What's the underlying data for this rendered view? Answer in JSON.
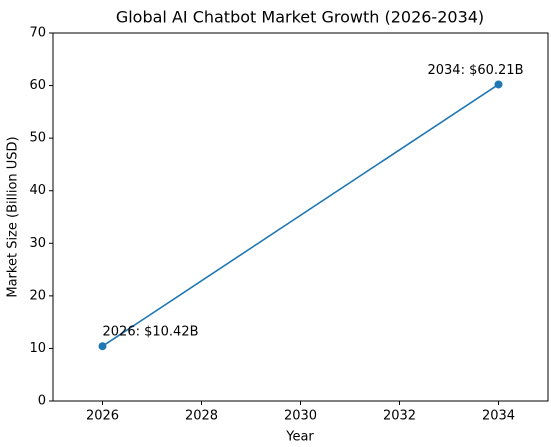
{
  "chart_data": {
    "type": "line",
    "title": "Global AI Chatbot Market Growth (2026-2034)",
    "x_label": "Year",
    "y_label": "Market Size (Billion USD)",
    "x": [
      2026,
      2034
    ],
    "values": [
      10.42,
      60.21
    ],
    "value_labels": [
      "2026: $10.42B",
      "2034: $60.21B"
    ],
    "color": "#1f77b4",
    "marker": "o",
    "xlim": [
      2025,
      2035
    ],
    "xticks": [
      2026,
      2028,
      2030,
      2032,
      2034
    ],
    "ylim": [
      0,
      70
    ],
    "yticks": [
      0,
      10,
      20,
      30,
      40,
      50,
      60,
      70
    ],
    "grid": false
  }
}
